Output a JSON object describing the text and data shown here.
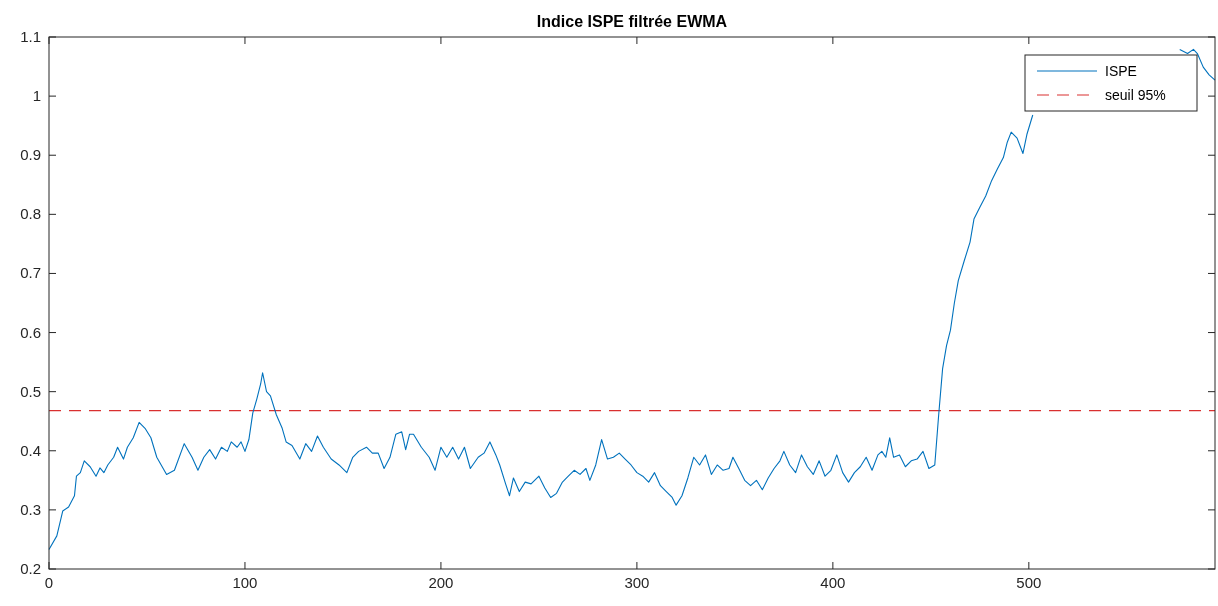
{
  "chart_data": {
    "type": "line",
    "title": "Indice ISPE filtrée EWMA",
    "xlim": [
      0,
      595
    ],
    "xticks": [
      0,
      100,
      200,
      300,
      400,
      500
    ],
    "ylim": [
      0.2,
      1.1
    ],
    "yticks": [
      0.2,
      0.3,
      0.4,
      0.5,
      0.6,
      0.7,
      0.8,
      0.9,
      1,
      1.1
    ],
    "grid": false,
    "legend": "top right",
    "line_style": "solid",
    "marker": "none",
    "series": [
      {
        "name": "ISPE",
        "color": "#0072bd",
        "x": [
          0,
          4,
          7,
          10,
          13,
          14,
          16,
          18,
          21,
          24,
          26,
          28,
          30,
          33,
          35,
          38,
          40,
          43,
          46,
          49,
          52,
          55,
          60,
          64,
          69,
          73,
          76,
          79,
          82,
          85,
          88,
          91,
          93,
          96,
          98,
          100,
          102,
          104,
          106,
          108,
          109,
          111,
          113,
          116,
          119,
          121,
          124,
          128,
          131,
          134,
          137,
          140,
          144,
          148,
          152,
          155,
          158,
          162,
          165,
          168,
          171,
          174,
          177,
          180,
          182,
          184,
          186,
          190,
          194,
          197,
          200,
          203,
          206,
          209,
          212,
          215,
          219,
          222,
          225,
          228,
          230,
          233,
          235,
          237,
          240,
          243,
          246,
          250,
          253,
          256,
          259,
          262,
          265,
          268,
          271,
          274,
          276,
          279,
          282,
          285,
          288,
          291,
          294,
          297,
          300,
          303,
          306,
          309,
          312,
          315,
          318,
          320,
          323,
          326,
          329,
          332,
          335,
          338,
          341,
          344,
          347,
          349,
          352,
          355,
          358,
          361,
          364,
          367,
          370,
          373,
          375,
          378,
          381,
          384,
          387,
          390,
          393,
          396,
          399,
          402,
          405,
          408,
          411,
          414,
          417,
          420,
          423,
          425,
          427,
          429,
          431,
          434,
          437,
          440,
          443,
          446,
          449,
          452,
          454,
          456,
          458,
          460,
          462,
          464,
          467,
          470,
          472,
          475,
          478,
          481,
          484,
          487,
          489,
          491,
          494,
          497,
          499,
          502,
          504,
          507,
          509,
          540,
          577,
          581,
          584,
          586,
          589,
          592,
          595
        ],
        "values": [
          0.233,
          0.256,
          0.298,
          0.305,
          0.324,
          0.357,
          0.363,
          0.383,
          0.373,
          0.357,
          0.371,
          0.363,
          0.376,
          0.389,
          0.406,
          0.386,
          0.406,
          0.422,
          0.448,
          0.438,
          0.422,
          0.389,
          0.36,
          0.367,
          0.412,
          0.389,
          0.367,
          0.389,
          0.402,
          0.386,
          0.406,
          0.399,
          0.415,
          0.406,
          0.415,
          0.399,
          0.419,
          0.464,
          0.487,
          0.513,
          0.532,
          0.5,
          0.493,
          0.461,
          0.438,
          0.415,
          0.409,
          0.386,
          0.412,
          0.399,
          0.425,
          0.406,
          0.386,
          0.376,
          0.363,
          0.389,
          0.399,
          0.406,
          0.396,
          0.396,
          0.37,
          0.389,
          0.428,
          0.432,
          0.402,
          0.428,
          0.428,
          0.406,
          0.389,
          0.367,
          0.406,
          0.389,
          0.406,
          0.386,
          0.406,
          0.37,
          0.389,
          0.396,
          0.415,
          0.393,
          0.376,
          0.344,
          0.324,
          0.354,
          0.331,
          0.347,
          0.344,
          0.357,
          0.337,
          0.321,
          0.328,
          0.347,
          0.357,
          0.367,
          0.36,
          0.37,
          0.35,
          0.376,
          0.419,
          0.386,
          0.389,
          0.396,
          0.386,
          0.376,
          0.363,
          0.357,
          0.347,
          0.363,
          0.341,
          0.331,
          0.321,
          0.308,
          0.324,
          0.354,
          0.389,
          0.376,
          0.393,
          0.36,
          0.376,
          0.367,
          0.37,
          0.389,
          0.37,
          0.35,
          0.341,
          0.35,
          0.334,
          0.354,
          0.37,
          0.383,
          0.399,
          0.376,
          0.363,
          0.393,
          0.373,
          0.36,
          0.383,
          0.357,
          0.367,
          0.393,
          0.363,
          0.347,
          0.363,
          0.373,
          0.389,
          0.367,
          0.393,
          0.399,
          0.389,
          0.422,
          0.389,
          0.393,
          0.373,
          0.383,
          0.386,
          0.399,
          0.37,
          0.376,
          0.461,
          0.539,
          0.578,
          0.604,
          0.65,
          0.688,
          0.721,
          0.753,
          0.792,
          0.812,
          0.831,
          0.857,
          0.877,
          0.896,
          0.922,
          0.939,
          0.929,
          0.903,
          0.935,
          0.968,
          null,
          null,
          null,
          null,
          1.079,
          1.072,
          1.079,
          1.072,
          1.049,
          1.036,
          1.027
        ]
      }
    ],
    "ref_lines": [
      {
        "axis": "y",
        "value": 0.468,
        "label": "seuil 95%",
        "color": "#d93030",
        "line_style": "dashed"
      }
    ]
  }
}
